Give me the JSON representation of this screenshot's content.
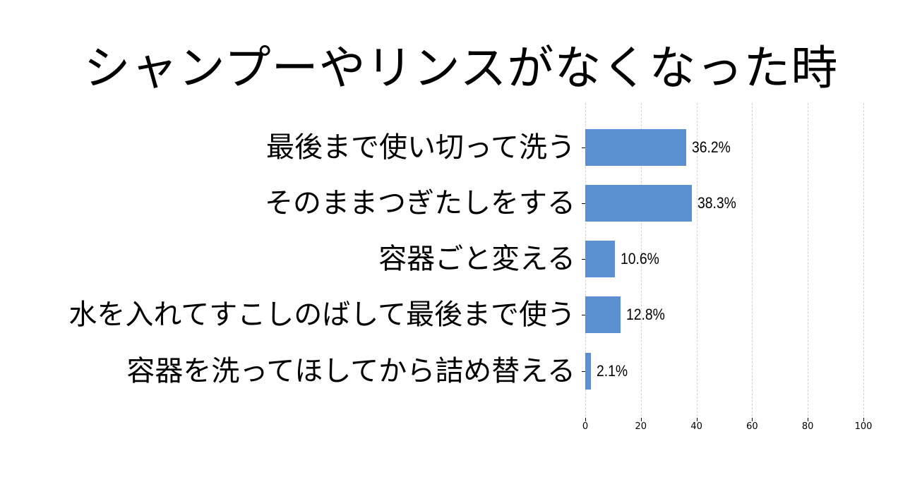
{
  "chart_data": {
    "type": "bar",
    "orientation": "horizontal",
    "title": "シャンプーやリンスがなくなった時",
    "xlabel": "",
    "ylabel": "",
    "xlim": [
      0,
      100
    ],
    "xticks": [
      0,
      20,
      40,
      60,
      80,
      100
    ],
    "grid": true,
    "bar_color": "#5b8fd0",
    "categories": [
      "最後まで使い切って洗う",
      "そのままつぎたしをする",
      "容器ごと変える",
      "水を入れてすこしのばして最後まで使う",
      "容器を洗ってほしてから詰め替える"
    ],
    "values": [
      36.2,
      38.3,
      10.6,
      12.8,
      2.1
    ],
    "value_labels": [
      "36.2%",
      "38.3%",
      "10.6%",
      "12.8%",
      "2.1%"
    ]
  },
  "xtick_labels": [
    "0",
    "20",
    "40",
    "60",
    "80",
    "100"
  ]
}
